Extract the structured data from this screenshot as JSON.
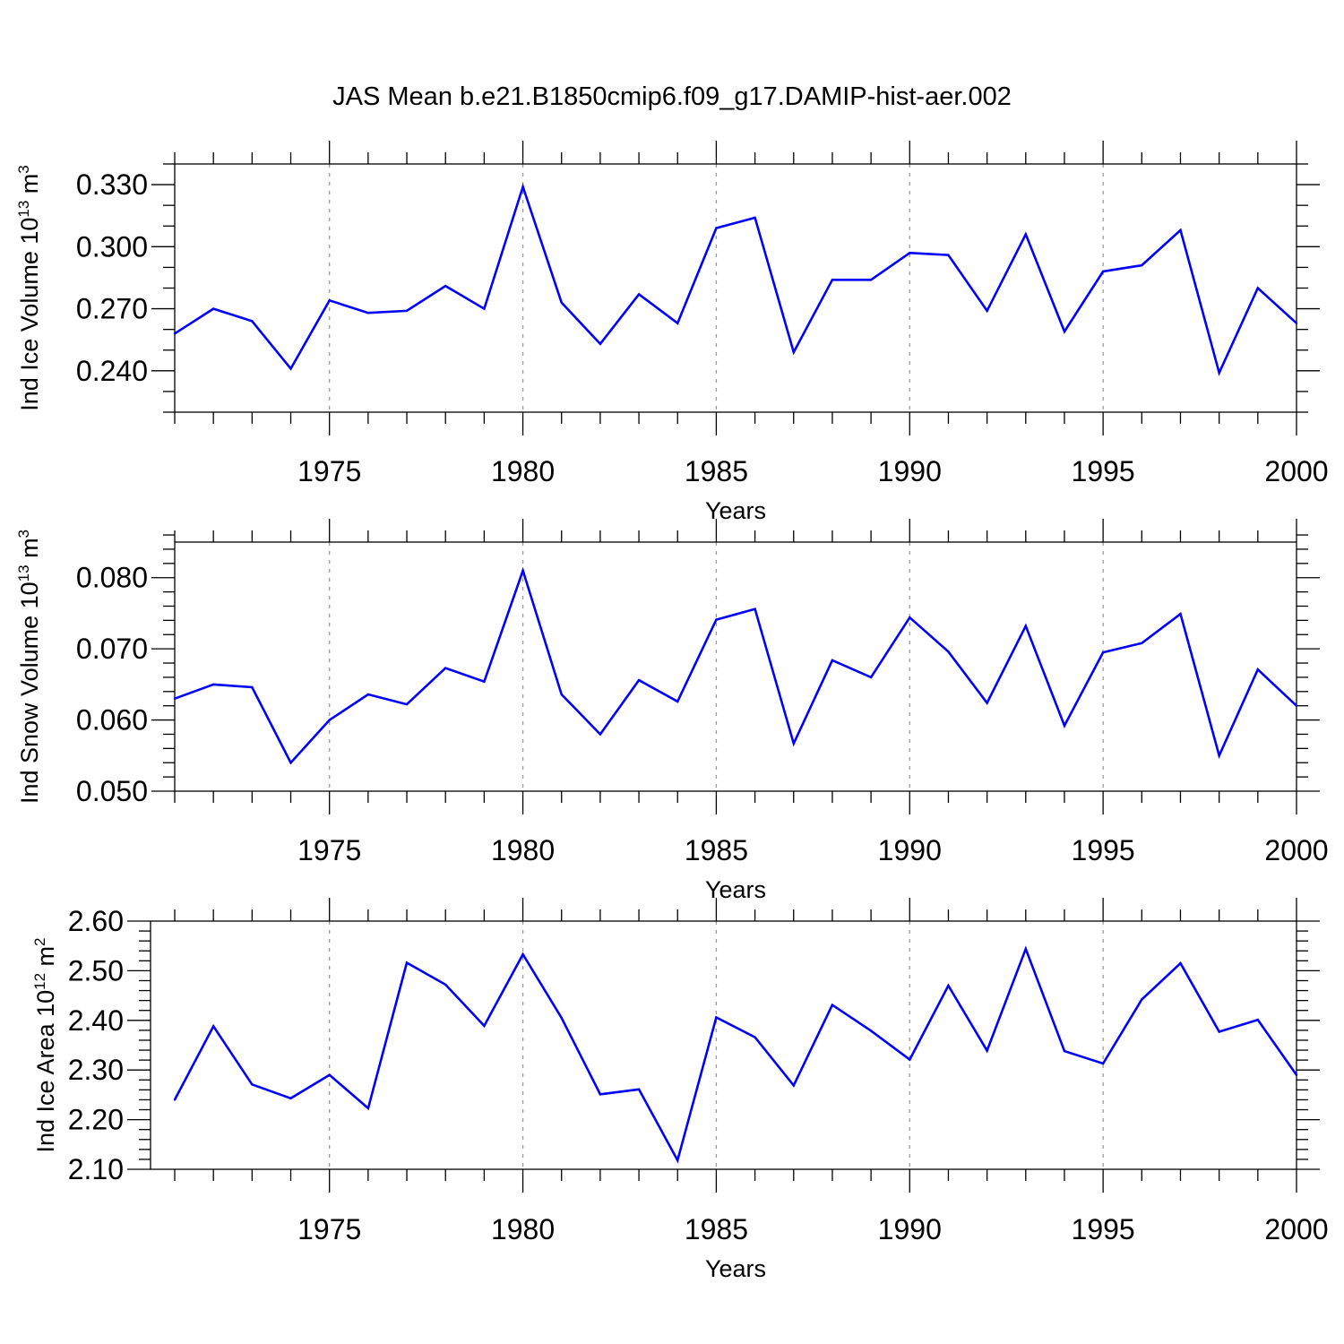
{
  "title": "JAS Mean b.e21.B1850cmip6.f09_g17.DAMIP-hist-aer.002",
  "chart_data": [
    {
      "type": "line",
      "xlabel": "Years",
      "ylabel": {
        "text": "Ind Ice Volume 10",
        "sup1": "13",
        "unit": " m",
        "sup2": "3"
      },
      "xlim": [
        1971,
        2000
      ],
      "ylim": [
        0.22,
        0.34
      ],
      "yticks": [
        0.24,
        0.27,
        0.3,
        0.33
      ],
      "yticklabels": [
        "0.240",
        "0.270",
        "0.300",
        "0.330"
      ],
      "yminor": 0.01,
      "xticks": [
        1975,
        1980,
        1985,
        1990,
        1995,
        2000
      ],
      "xticklabels": [
        "1975",
        "1980",
        "1985",
        "1990",
        "1995",
        "2000"
      ],
      "color": "#0000ff",
      "grid": "vertical dashed at major x ticks",
      "x": [
        1971,
        1972,
        1973,
        1974,
        1975,
        1976,
        1977,
        1978,
        1979,
        1980,
        1981,
        1982,
        1983,
        1984,
        1985,
        1986,
        1987,
        1988,
        1989,
        1990,
        1991,
        1992,
        1993,
        1994,
        1995,
        1996,
        1997,
        1998,
        1999,
        2000
      ],
      "values": [
        0.258,
        0.27,
        0.264,
        0.241,
        0.274,
        0.268,
        0.269,
        0.281,
        0.27,
        0.329,
        0.273,
        0.253,
        0.277,
        0.263,
        0.309,
        0.314,
        0.249,
        0.284,
        0.284,
        0.297,
        0.296,
        0.269,
        0.306,
        0.259,
        0.288,
        0.291,
        0.308,
        0.239,
        0.28,
        0.263
      ]
    },
    {
      "type": "line",
      "xlabel": "Years",
      "ylabel": {
        "text": "Ind Snow Volume 10",
        "sup1": "13",
        "unit": " m",
        "sup2": "3"
      },
      "xlim": [
        1971,
        2000
      ],
      "ylim": [
        0.05,
        0.085
      ],
      "yticks": [
        0.05,
        0.06,
        0.07,
        0.08
      ],
      "yticklabels": [
        "0.050",
        "0.060",
        "0.070",
        "0.080"
      ],
      "yminor": 0.002,
      "xticks": [
        1975,
        1980,
        1985,
        1990,
        1995,
        2000
      ],
      "xticklabels": [
        "1975",
        "1980",
        "1985",
        "1990",
        "1995",
        "2000"
      ],
      "color": "#0000ff",
      "grid": "vertical dashed at major x ticks",
      "x": [
        1971,
        1972,
        1973,
        1974,
        1975,
        1976,
        1977,
        1978,
        1979,
        1980,
        1981,
        1982,
        1983,
        1984,
        1985,
        1986,
        1987,
        1988,
        1989,
        1990,
        1991,
        1992,
        1993,
        1994,
        1995,
        1996,
        1997,
        1998,
        1999,
        2000
      ],
      "values": [
        0.063,
        0.065,
        0.0646,
        0.054,
        0.06,
        0.0636,
        0.0622,
        0.0673,
        0.0654,
        0.081,
        0.0636,
        0.058,
        0.0656,
        0.0626,
        0.0741,
        0.0756,
        0.0567,
        0.0684,
        0.066,
        0.0744,
        0.0696,
        0.0624,
        0.0732,
        0.0592,
        0.0695,
        0.0708,
        0.0749,
        0.055,
        0.0671,
        0.062
      ]
    },
    {
      "type": "line",
      "xlabel": "Years",
      "ylabel": {
        "text": "Ind Ice Area 10",
        "sup1": "12",
        "unit": " m",
        "sup2": "2"
      },
      "xlim": [
        1971,
        2000
      ],
      "ylim": [
        2.1,
        2.6
      ],
      "yticks": [
        2.1,
        2.2,
        2.3,
        2.4,
        2.5,
        2.6
      ],
      "yticklabels": [
        "2.10",
        "2.20",
        "2.30",
        "2.40",
        "2.50",
        "2.60"
      ],
      "yminor": 0.02,
      "xticks": [
        1975,
        1980,
        1985,
        1990,
        1995,
        2000
      ],
      "xticklabels": [
        "1975",
        "1980",
        "1985",
        "1990",
        "1995",
        "2000"
      ],
      "color": "#0000ff",
      "grid": "vertical dashed at major x ticks",
      "x": [
        1971,
        1972,
        1973,
        1974,
        1975,
        1976,
        1977,
        1978,
        1979,
        1980,
        1981,
        1982,
        1983,
        1984,
        1985,
        1986,
        1987,
        1988,
        1989,
        1990,
        1991,
        1992,
        1993,
        1994,
        1995,
        1996,
        1997,
        1998,
        1999,
        2000
      ],
      "values": [
        2.24,
        2.388,
        2.271,
        2.243,
        2.29,
        2.223,
        2.516,
        2.472,
        2.389,
        2.533,
        2.405,
        2.251,
        2.261,
        2.118,
        2.406,
        2.366,
        2.269,
        2.431,
        2.379,
        2.321,
        2.47,
        2.339,
        2.544,
        2.338,
        2.313,
        2.442,
        2.515,
        2.377,
        2.401,
        2.29
      ]
    }
  ]
}
